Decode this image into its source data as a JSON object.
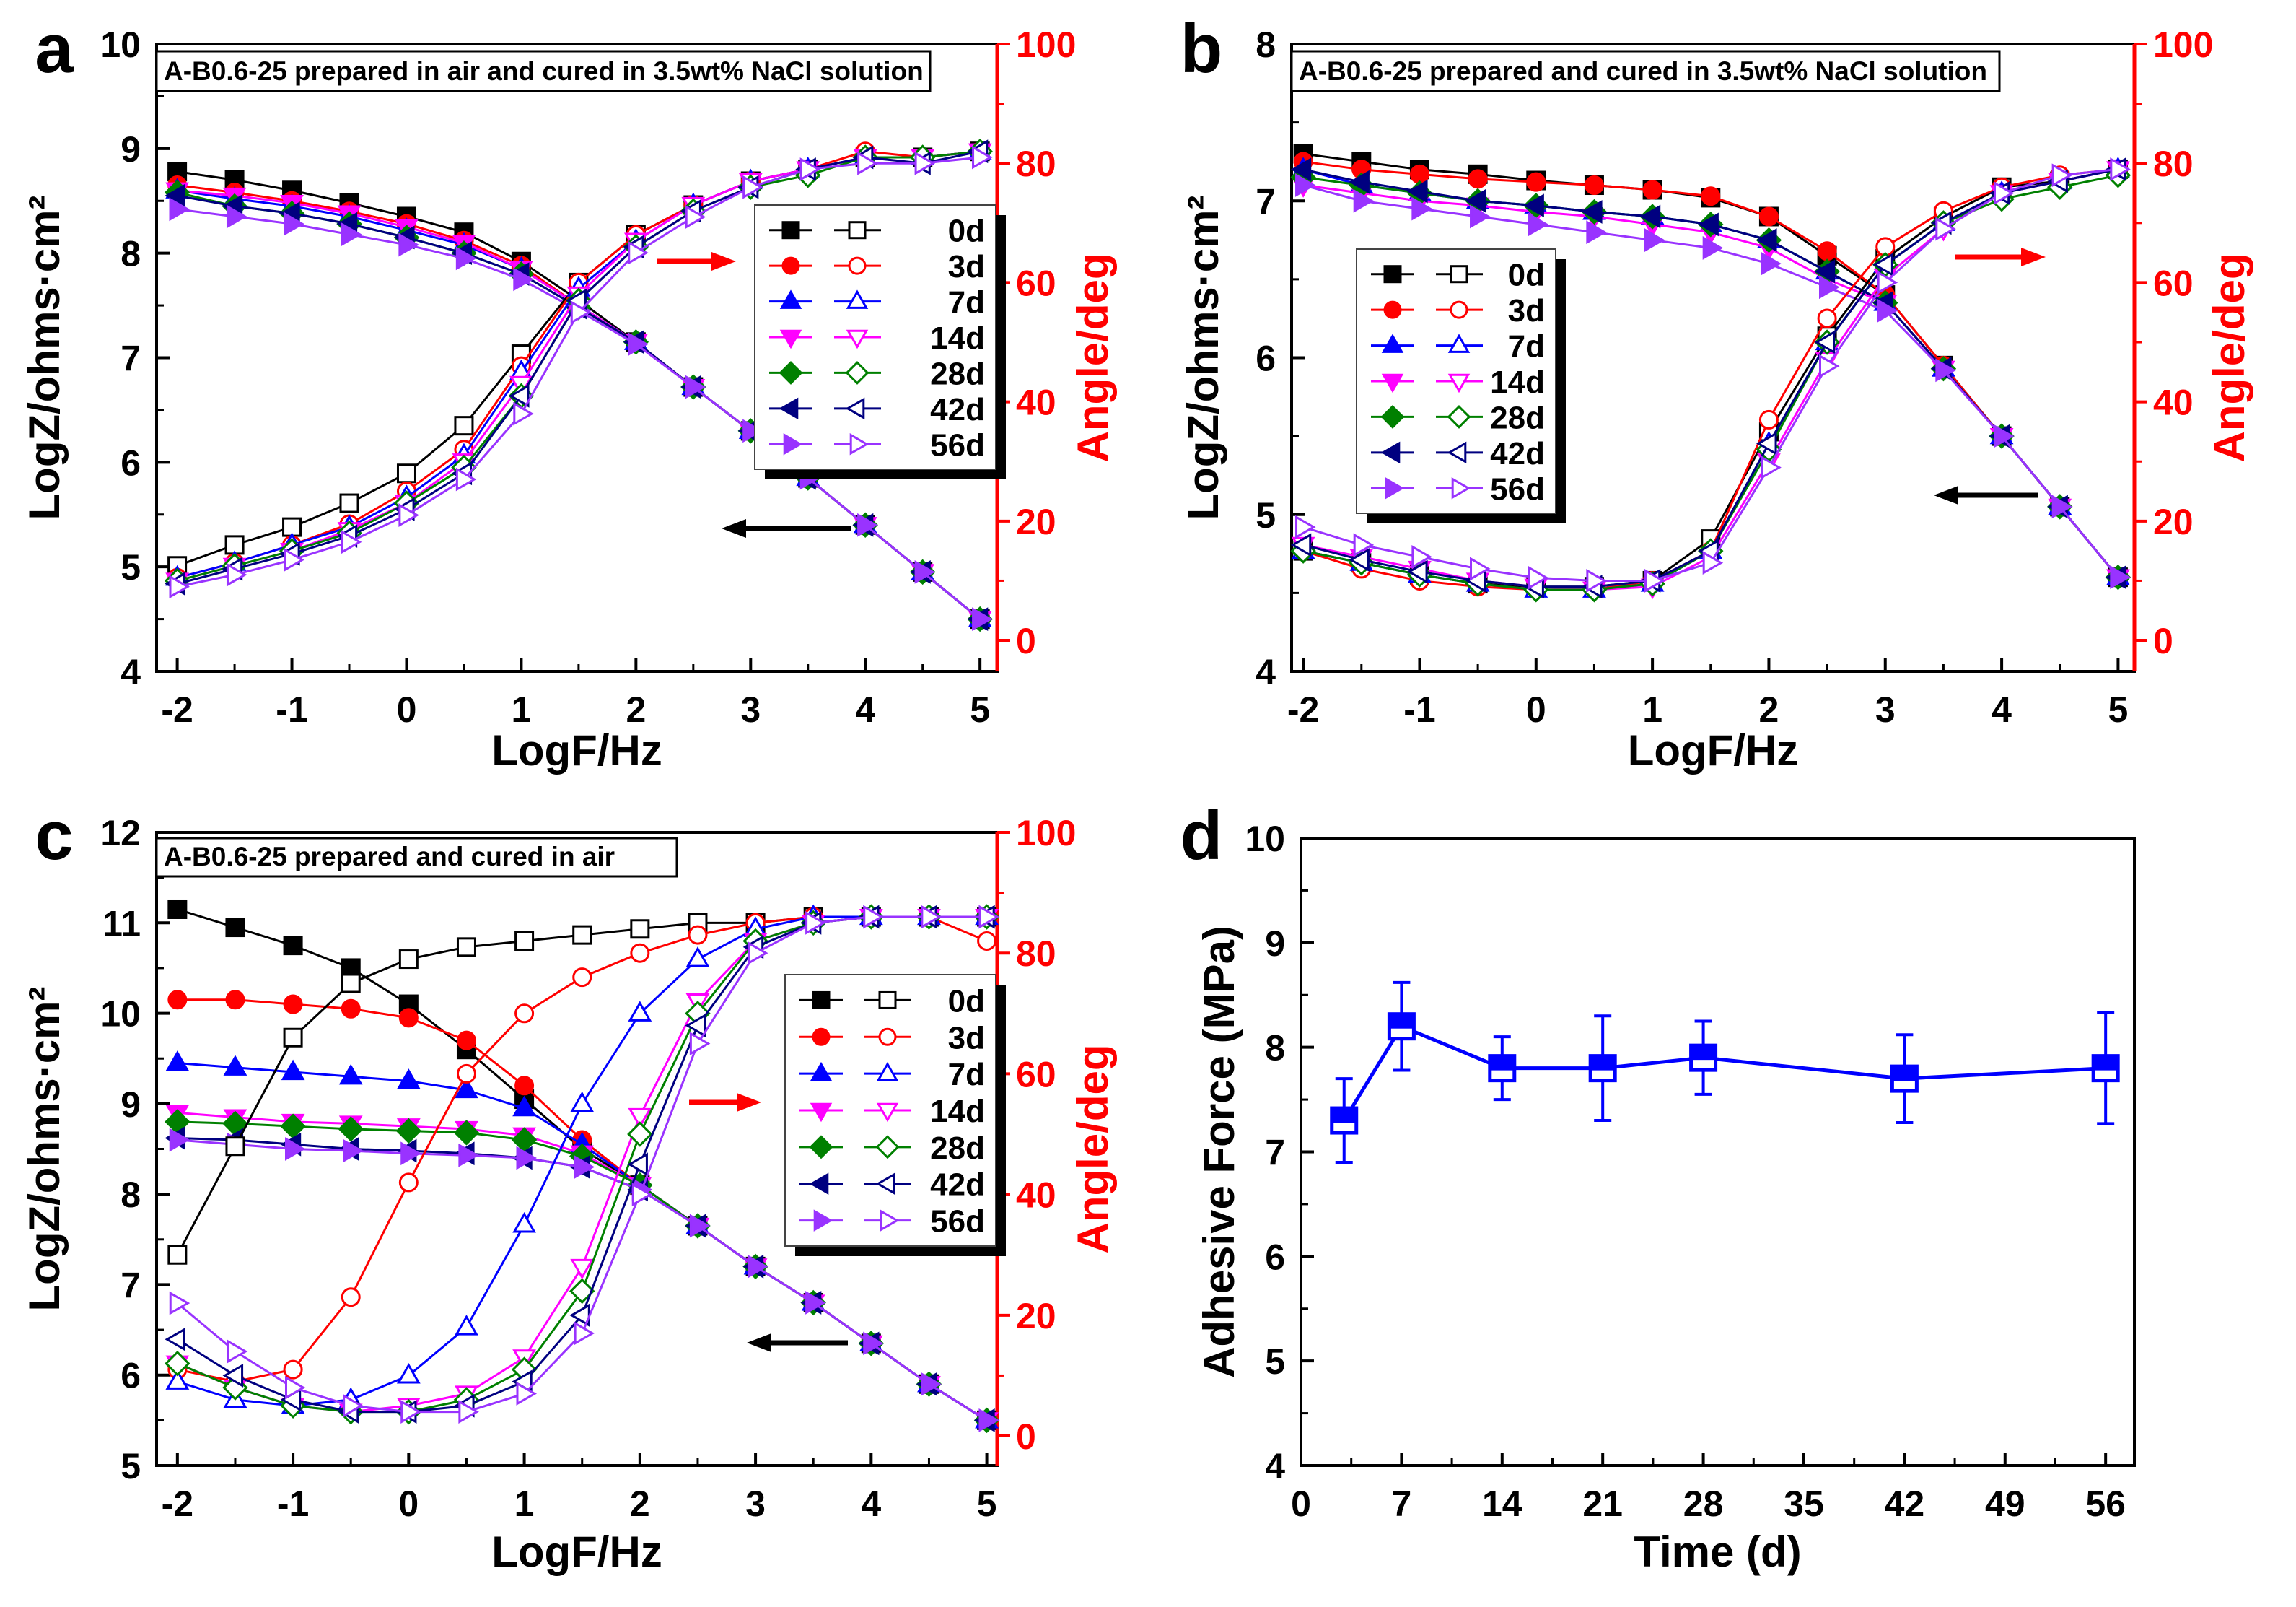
{
  "colors": {
    "d0": "#000000",
    "d3": "#ff0000",
    "d7": "#0000ff",
    "d14": "#ff00ff",
    "d28": "#008000",
    "d42": "#000080",
    "d56": "#9933ff",
    "angle_axis": "#ff0000",
    "adhesive": "#0000ff"
  },
  "legend_labels": [
    "0d",
    "3d",
    "7d",
    "14d",
    "28d",
    "42d",
    "56d"
  ],
  "chart_data": [
    {
      "panel": "a",
      "type": "line",
      "title": "A-B0.6-25 prepared in air and cured in 3.5wt% NaCl solution",
      "xlabel": "LogF/Hz",
      "ylabel": "LogZ/ohms·cm²",
      "y2label": "Angle/deg",
      "xlim": [
        -2.18,
        5.15
      ],
      "ylim": [
        4,
        10
      ],
      "y2lim": [
        -5.2,
        100
      ],
      "xticks": [
        "-2",
        "-1",
        "0",
        "1",
        "2",
        "3",
        "4",
        "5"
      ],
      "yticks": [
        "4",
        "5",
        "6",
        "7",
        "8",
        "9",
        "10"
      ],
      "y2ticks": [
        "0",
        "20",
        "40",
        "60",
        "80",
        "100"
      ],
      "x": [
        -2,
        -1.5,
        -1,
        -0.5,
        0,
        0.5,
        1,
        1.5,
        2,
        2.5,
        3,
        3.5,
        4,
        4.5,
        5
      ],
      "logZ": [
        [
          8.78,
          8.7,
          8.6,
          8.48,
          8.35,
          8.2,
          7.92,
          7.55,
          7.15,
          6.72,
          6.3,
          5.85,
          5.4,
          4.95,
          4.5
        ],
        [
          8.65,
          8.58,
          8.5,
          8.4,
          8.28,
          8.12,
          7.88,
          7.5,
          7.15,
          6.72,
          6.3,
          5.85,
          5.4,
          4.95,
          4.5
        ],
        [
          8.6,
          8.52,
          8.45,
          8.35,
          8.22,
          8.08,
          7.85,
          7.5,
          7.15,
          6.72,
          6.3,
          5.85,
          5.4,
          4.95,
          4.5
        ],
        [
          8.6,
          8.55,
          8.48,
          8.38,
          8.25,
          8.1,
          7.85,
          7.5,
          7.15,
          6.72,
          6.3,
          5.85,
          5.4,
          4.95,
          4.5
        ],
        [
          8.58,
          8.45,
          8.38,
          8.28,
          8.15,
          8.0,
          7.8,
          7.48,
          7.15,
          6.72,
          6.3,
          5.85,
          5.4,
          4.95,
          4.5
        ],
        [
          8.55,
          8.45,
          8.38,
          8.28,
          8.15,
          8.0,
          7.8,
          7.48,
          7.15,
          6.72,
          6.3,
          5.85,
          5.4,
          4.95,
          4.5
        ],
        [
          8.42,
          8.35,
          8.28,
          8.18,
          8.08,
          7.95,
          7.75,
          7.45,
          7.13,
          6.72,
          6.3,
          5.85,
          5.4,
          4.95,
          4.5
        ]
      ],
      "angle": [
        [
          12.5,
          16,
          19,
          23,
          28,
          36,
          48,
          60,
          68,
          73,
          77,
          79,
          81,
          81,
          82
        ],
        [
          10.5,
          13,
          16,
          19.5,
          25,
          32,
          46,
          60,
          68,
          73,
          77,
          79,
          82,
          81,
          82
        ],
        [
          10.5,
          13,
          16,
          19,
          24,
          31,
          45,
          59,
          67,
          73,
          77,
          79,
          81,
          81,
          82
        ],
        [
          10,
          12.5,
          15,
          18.5,
          23,
          30,
          43,
          58,
          67,
          73,
          77,
          79,
          81,
          81,
          82
        ],
        [
          10,
          12.5,
          15,
          18,
          23,
          29,
          41,
          57,
          66,
          72,
          76,
          78,
          81,
          81,
          82
        ],
        [
          9.5,
          12,
          14.5,
          17.5,
          22,
          28,
          41,
          57,
          66,
          72,
          76,
          79,
          81,
          80,
          82
        ],
        [
          9,
          11,
          13.5,
          16.5,
          21,
          27,
          38,
          55,
          65,
          71,
          76,
          79,
          80,
          80,
          81
        ]
      ]
    },
    {
      "panel": "b",
      "type": "line",
      "title": "A-B0.6-25 prepared and cured in 3.5wt% NaCl solution",
      "xlabel": "LogF/Hz",
      "ylabel": "LogZ/ohms·cm²",
      "y2label": "Angle/deg",
      "xlim": [
        -2.1,
        5.14
      ],
      "ylim": [
        4,
        8
      ],
      "y2lim": [
        -5.2,
        100
      ],
      "xticks": [
        "-2",
        "-1",
        "0",
        "1",
        "2",
        "3",
        "4",
        "5"
      ],
      "yticks": [
        "4",
        "5",
        "6",
        "7",
        "8"
      ],
      "y2ticks": [
        "0",
        "20",
        "40",
        "60",
        "80",
        "100"
      ],
      "x": [
        -2,
        -1.5,
        -1,
        -0.5,
        0,
        0.5,
        1,
        1.5,
        2,
        2.5,
        3,
        3.5,
        4,
        4.5,
        5
      ],
      "logZ": [
        [
          7.3,
          7.25,
          7.2,
          7.17,
          7.13,
          7.1,
          7.07,
          7.02,
          6.9,
          6.65,
          6.4,
          5.95,
          5.5,
          5.05,
          4.6
        ],
        [
          7.25,
          7.2,
          7.17,
          7.14,
          7.12,
          7.1,
          7.07,
          7.03,
          6.9,
          6.68,
          6.4,
          5.95,
          5.5,
          5.05,
          4.6
        ],
        [
          7.2,
          7.1,
          7.05,
          7.0,
          6.97,
          6.93,
          6.9,
          6.85,
          6.75,
          6.55,
          6.35,
          5.93,
          5.5,
          5.05,
          4.6
        ],
        [
          7.1,
          7.05,
          7.0,
          6.97,
          6.93,
          6.9,
          6.85,
          6.8,
          6.7,
          6.5,
          6.35,
          5.93,
          5.5,
          5.05,
          4.6
        ],
        [
          7.15,
          7.1,
          7.05,
          7.0,
          6.97,
          6.93,
          6.9,
          6.85,
          6.75,
          6.55,
          6.35,
          5.93,
          5.5,
          5.05,
          4.6
        ],
        [
          7.2,
          7.12,
          7.06,
          7.0,
          6.97,
          6.93,
          6.9,
          6.85,
          6.75,
          6.55,
          6.35,
          5.93,
          5.5,
          5.05,
          4.6
        ],
        [
          7.1,
          7.0,
          6.95,
          6.9,
          6.85,
          6.8,
          6.75,
          6.7,
          6.6,
          6.45,
          6.3,
          5.92,
          5.5,
          5.05,
          4.6
        ]
      ],
      "angle": [
        [
          15,
          13,
          11,
          9.5,
          9,
          9,
          10,
          17,
          35,
          51,
          64,
          71,
          76,
          77,
          79
        ],
        [
          15,
          12,
          10,
          9,
          8.5,
          8.5,
          10,
          15,
          37,
          54,
          66,
          72,
          76,
          78,
          79
        ],
        [
          15,
          13,
          11,
          9.5,
          8.5,
          8.5,
          9.5,
          15,
          33,
          50,
          63,
          70,
          75,
          77,
          79
        ],
        [
          16,
          14,
          12,
          10,
          9,
          8.5,
          9,
          14,
          30,
          47,
          61,
          69,
          75,
          77,
          79
        ],
        [
          15,
          13,
          11,
          9.5,
          8.5,
          8.5,
          9.5,
          15,
          32,
          50,
          63,
          70,
          74,
          76,
          78
        ],
        [
          16,
          13.5,
          11.5,
          10,
          9,
          9,
          10,
          15,
          33,
          50,
          63,
          70,
          75,
          77,
          79
        ],
        [
          19,
          16,
          14,
          12,
          10.5,
          10,
          10,
          13,
          29,
          46,
          60,
          69,
          75,
          78,
          79
        ]
      ]
    },
    {
      "panel": "c",
      "type": "line",
      "title": "A-B0.6-25 prepared and cured in air",
      "xlabel": "LogF/Hz",
      "ylabel": "LogZ/ohms·cm²",
      "y2label": "Angle/deg",
      "xlim": [
        -2.18,
        5.09
      ],
      "ylim": [
        5,
        12
      ],
      "y2lim": [
        -4.9,
        100
      ],
      "xticks": [
        "-2",
        "-1",
        "0",
        "1",
        "2",
        "3",
        "4",
        "5"
      ],
      "yticks": [
        "5",
        "6",
        "7",
        "8",
        "9",
        "10",
        "11",
        "12"
      ],
      "y2ticks": [
        "0",
        "20",
        "40",
        "60",
        "80",
        "100"
      ],
      "x": [
        -2,
        -1.5,
        -1,
        -0.5,
        0,
        0.5,
        1,
        1.5,
        2,
        2.5,
        3,
        3.5,
        4,
        4.5,
        5
      ],
      "logZ": [
        [
          11.15,
          10.95,
          10.75,
          10.5,
          10.1,
          9.6,
          9.05,
          8.5,
          8.1,
          7.65,
          7.2,
          6.8,
          6.35,
          5.9,
          5.5
        ],
        [
          10.15,
          10.15,
          10.1,
          10.05,
          9.95,
          9.7,
          9.2,
          8.6,
          8.1,
          7.65,
          7.2,
          6.8,
          6.35,
          5.9,
          5.5
        ],
        [
          9.45,
          9.4,
          9.35,
          9.3,
          9.25,
          9.15,
          8.95,
          8.55,
          8.1,
          7.65,
          7.2,
          6.8,
          6.35,
          5.9,
          5.5
        ],
        [
          8.9,
          8.85,
          8.8,
          8.78,
          8.75,
          8.72,
          8.65,
          8.45,
          8.1,
          7.65,
          7.2,
          6.8,
          6.35,
          5.9,
          5.5
        ],
        [
          8.8,
          8.78,
          8.75,
          8.72,
          8.7,
          8.68,
          8.6,
          8.42,
          8.1,
          7.65,
          7.2,
          6.8,
          6.35,
          5.9,
          5.5
        ],
        [
          8.62,
          8.6,
          8.55,
          8.5,
          8.48,
          8.45,
          8.4,
          8.3,
          8.05,
          7.65,
          7.2,
          6.8,
          6.35,
          5.9,
          5.5
        ],
        [
          8.6,
          8.55,
          8.5,
          8.48,
          8.45,
          8.43,
          8.4,
          8.3,
          8.05,
          7.65,
          7.2,
          6.8,
          6.35,
          5.9,
          5.5
        ]
      ],
      "angle": [
        [
          30,
          48,
          66,
          75,
          79,
          81,
          82,
          83,
          84,
          85,
          85,
          86,
          86,
          86,
          86
        ],
        [
          11,
          9,
          11,
          23,
          42,
          60,
          70,
          76,
          80,
          83,
          85,
          86,
          86,
          86,
          82
        ],
        [
          9,
          6,
          5,
          6,
          10,
          18,
          35,
          55,
          70,
          79,
          84,
          86,
          86,
          86,
          86
        ],
        [
          12,
          8,
          5,
          4,
          5,
          7,
          13,
          28,
          53,
          72,
          82,
          85,
          86,
          86,
          86
        ],
        [
          12,
          8,
          5,
          4,
          4,
          6,
          11,
          24,
          50,
          70,
          82,
          85,
          86,
          86,
          86
        ],
        [
          16,
          10,
          6,
          4,
          4,
          5,
          9,
          20,
          45,
          68,
          81,
          85,
          86,
          86,
          86
        ],
        [
          22,
          14,
          8,
          5,
          4,
          4,
          7,
          17,
          40,
          65,
          80,
          85,
          86,
          86,
          86
        ]
      ]
    },
    {
      "panel": "d",
      "type": "line",
      "xlabel": "Time (d)",
      "ylabel": "Adhesive Force (MPa)",
      "xlim": [
        0,
        58
      ],
      "ylim": [
        4,
        10
      ],
      "xticks": [
        "0",
        "7",
        "14",
        "21",
        "28",
        "35",
        "42",
        "49",
        "56"
      ],
      "yticks": [
        "4",
        "5",
        "6",
        "7",
        "8",
        "9",
        "10"
      ],
      "x": [
        3,
        7,
        14,
        21,
        28,
        42,
        56
      ],
      "y": [
        7.3,
        8.2,
        7.8,
        7.8,
        7.9,
        7.7,
        7.8
      ],
      "err_low": [
        6.9,
        7.78,
        7.5,
        7.3,
        7.55,
        7.28,
        7.27
      ],
      "err_high": [
        7.7,
        8.62,
        8.1,
        8.3,
        8.25,
        8.12,
        8.33
      ]
    }
  ]
}
